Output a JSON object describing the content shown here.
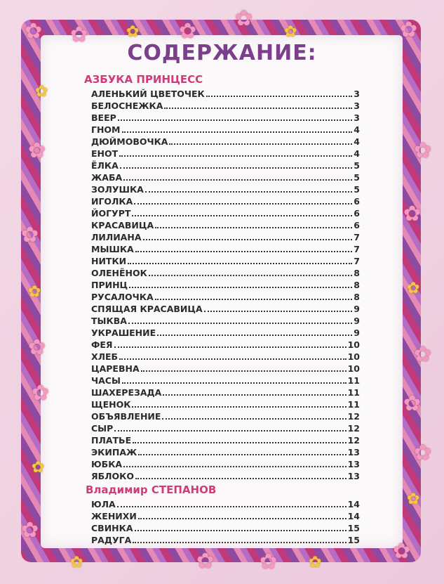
{
  "title": "СОДЕРЖАНИЕ:",
  "sections": [
    {
      "heading": "АЗБУКА ПРИНЦЕСС",
      "entries": [
        {
          "name": "АЛЕНЬКИЙ ЦВЕТОЧЕК",
          "page": "3"
        },
        {
          "name": "БЕЛОСНЕЖКА",
          "page": "3"
        },
        {
          "name": "ВЕЕР",
          "page": "3"
        },
        {
          "name": "ГНОМ",
          "page": "4"
        },
        {
          "name": "ДЮЙМОВОЧКА",
          "page": "4"
        },
        {
          "name": "ЕНОТ",
          "page": "4"
        },
        {
          "name": "ЁЛКА",
          "page": "5"
        },
        {
          "name": "ЖАБА",
          "page": "5"
        },
        {
          "name": "ЗОЛУШКА",
          "page": "5"
        },
        {
          "name": "ИГОЛКА",
          "page": "6"
        },
        {
          "name": "ЙОГУРТ",
          "page": "6"
        },
        {
          "name": "КРАСАВИЦА",
          "page": "6"
        },
        {
          "name": "ЛИЛИАНА",
          "page": "7"
        },
        {
          "name": "МЫШКА",
          "page": "7"
        },
        {
          "name": "НИТКИ",
          "page": "7"
        },
        {
          "name": "ОЛЕНЁНОК",
          "page": "8"
        },
        {
          "name": "ПРИНЦ",
          "page": "8"
        },
        {
          "name": "РУСАЛОЧКА",
          "page": "8"
        },
        {
          "name": "СПЯЩАЯ КРАСАВИЦА",
          "page": "9"
        },
        {
          "name": "ТЫКВА",
          "page": "9"
        },
        {
          "name": "УКРАШЕНИЕ",
          "page": "9"
        },
        {
          "name": "ФЕЯ",
          "page": "10"
        },
        {
          "name": "ХЛЕБ",
          "page": "10"
        },
        {
          "name": "ЦАРЕВНА",
          "page": "10"
        },
        {
          "name": "ЧАСЫ",
          "page": "11"
        },
        {
          "name": "ШАХЕРЕЗАДА",
          "page": "11"
        },
        {
          "name": "ЩЕНОК",
          "page": "11"
        },
        {
          "name": "ОБЪЯВЛЕНИЕ",
          "page": "12"
        },
        {
          "name": "СЫР",
          "page": "12"
        },
        {
          "name": "ПЛАТЬЕ",
          "page": "12"
        },
        {
          "name": "ЭКИПАЖ",
          "page": "13"
        },
        {
          "name": "ЮБКА",
          "page": "13"
        },
        {
          "name": "ЯБЛОКО",
          "page": "13"
        }
      ]
    },
    {
      "heading": "Владимир СТЕПАНОВ",
      "entries": [
        {
          "name": "ЮЛА",
          "page": "14"
        },
        {
          "name": "ЖЕНИХИ",
          "page": "14"
        },
        {
          "name": "СВИНКА",
          "page": "15"
        },
        {
          "name": "РАДУГА",
          "page": "15"
        }
      ]
    }
  ],
  "colors": {
    "title": "#7b3f8c",
    "section": "#d23b7a",
    "text": "#2b2b2b",
    "background": "#f1d3e2"
  },
  "decorations": [
    "flower-icon",
    "ribbon-frame"
  ]
}
